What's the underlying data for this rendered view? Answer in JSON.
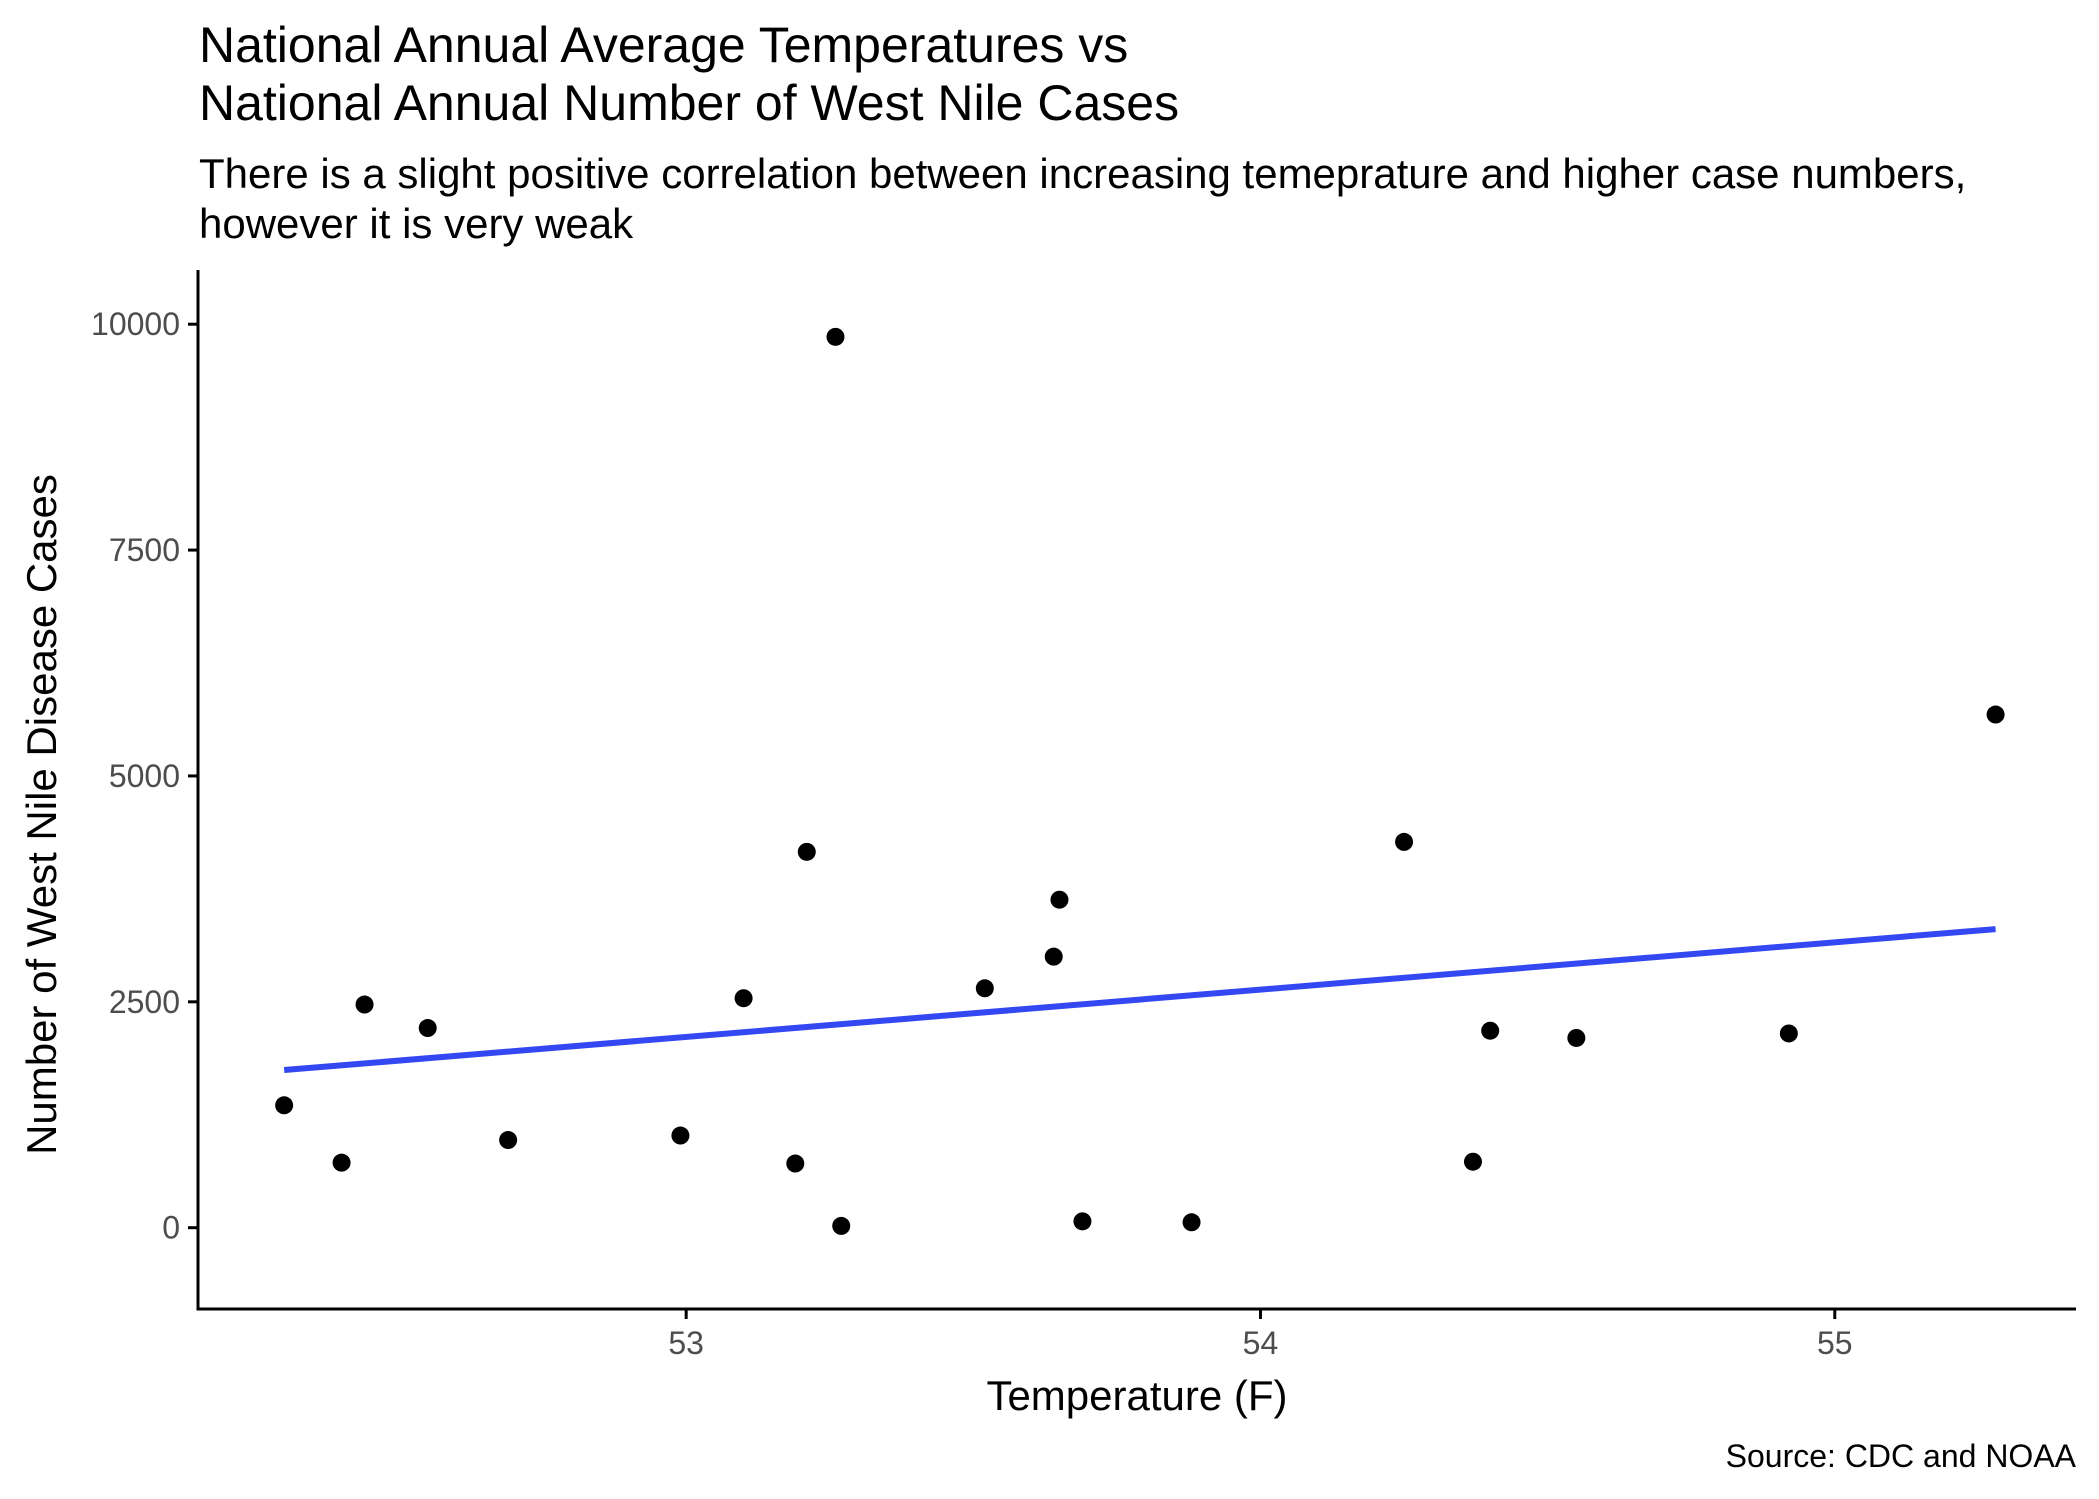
{
  "chart_data": {
    "type": "scatter",
    "title": [
      "National Annual Average Temperatures vs",
      "National Annual Number of West Nile Cases"
    ],
    "subtitle": [
      "There is a slight positive correlation between increasing temeprature and higher case numbers,",
      "however it is very weak"
    ],
    "xlabel": "Temperature (F)",
    "ylabel": "Number of West Nile Disease Cases",
    "caption": "Source: CDC and NOAA",
    "xlim": [
      52.15,
      55.42
    ],
    "ylim": [
      -900,
      10600
    ],
    "x_ticks": [
      53,
      54,
      55
    ],
    "y_ticks": [
      0,
      2500,
      5000,
      7500,
      10000
    ],
    "grid": false,
    "legend": "none",
    "point_color": "#000000",
    "trend_color": "#3348f2",
    "points": [
      {
        "x": 52.3,
        "y": 1355
      },
      {
        "x": 52.4,
        "y": 720
      },
      {
        "x": 52.44,
        "y": 2470
      },
      {
        "x": 52.55,
        "y": 2210
      },
      {
        "x": 52.69,
        "y": 970
      },
      {
        "x": 52.99,
        "y": 1020
      },
      {
        "x": 53.1,
        "y": 2540
      },
      {
        "x": 53.19,
        "y": 710
      },
      {
        "x": 53.21,
        "y": 4160
      },
      {
        "x": 53.26,
        "y": 9860
      },
      {
        "x": 53.27,
        "y": 20
      },
      {
        "x": 53.52,
        "y": 2650
      },
      {
        "x": 53.64,
        "y": 3000
      },
      {
        "x": 53.65,
        "y": 3630
      },
      {
        "x": 53.69,
        "y": 70
      },
      {
        "x": 53.88,
        "y": 60
      },
      {
        "x": 54.25,
        "y": 4270
      },
      {
        "x": 54.37,
        "y": 730
      },
      {
        "x": 54.4,
        "y": 2180
      },
      {
        "x": 54.55,
        "y": 2100
      },
      {
        "x": 54.92,
        "y": 2150
      },
      {
        "x": 55.28,
        "y": 5680
      }
    ],
    "trend_line": {
      "x": [
        52.3,
        55.28
      ],
      "y": [
        1745,
        3305
      ]
    }
  }
}
